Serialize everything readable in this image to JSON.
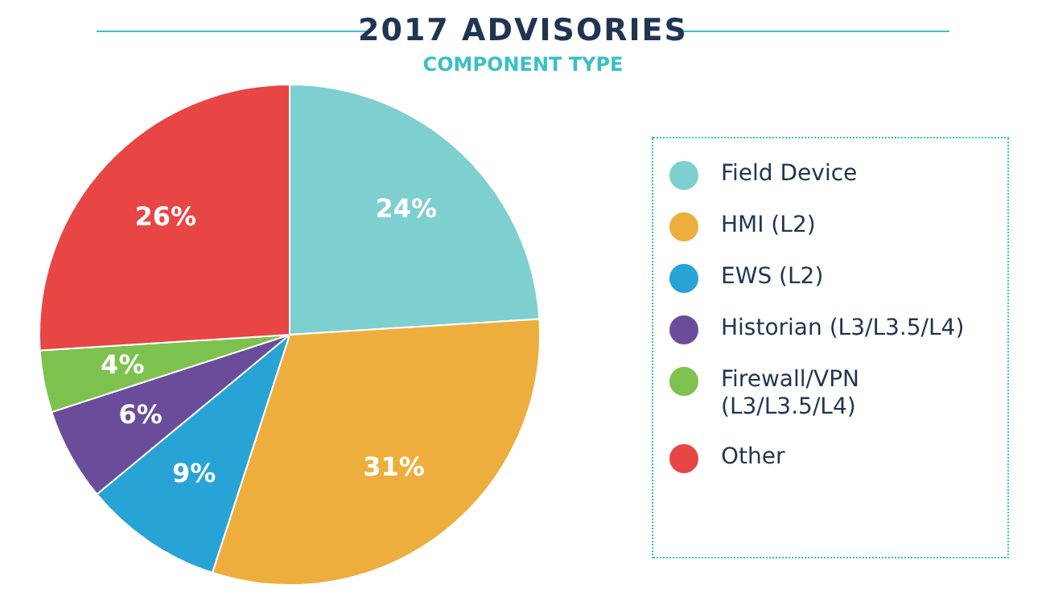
{
  "chart_data": {
    "type": "pie",
    "title": "2017 ADVISORIES",
    "subtitle": "COMPONENT TYPE",
    "categories": [
      "Field Device",
      "HMI (L2)",
      "EWS (L2)",
      "Historian (L3/L3.5/L4)",
      "Firewall/VPN  (L3/L3.5/L4)",
      "Other"
    ],
    "values": [
      24,
      31,
      9,
      6,
      4,
      26
    ],
    "value_labels": [
      "24%",
      "31%",
      "9%",
      "6%",
      "4%",
      "26%"
    ],
    "colors": [
      "#7ecfcf",
      "#eeae3e",
      "#27a3d6",
      "#6b4c9a",
      "#7dc24e",
      "#e84545"
    ],
    "legend": "right"
  }
}
